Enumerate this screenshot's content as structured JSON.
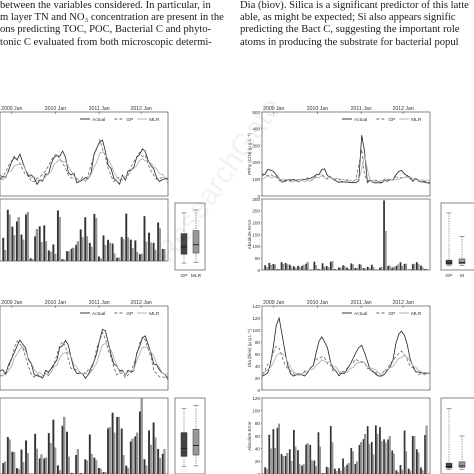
{
  "text_left": {
    "lines": [
      "between the variables considered. In particular, in",
      "m layer TN and NO₃ concentration are present in the",
      "ons predicting TOC, POC, Bacterial C and phyto-",
      "tonic C evaluated from both microscopic determi-"
    ]
  },
  "text_right": {
    "lines": [
      "Dia (biov). Silica is a significant predictor of this latte",
      "able, as might be expected; Si also appears signific",
      "predicting the Bact C, suggesting the important role",
      "atoms in producing the substrate for bacterial popul"
    ]
  },
  "year_ticks": [
    "2009 Jan",
    "2010 Jan",
    "2011 Jan",
    "2012 Jan"
  ],
  "legend": {
    "actual": "Actual",
    "gp": "GP",
    "mlr": "MLR"
  },
  "box_labels": [
    "GP",
    "MLR"
  ],
  "box_labels_right": [
    "GP",
    "M"
  ],
  "panels": {
    "tr_line": {
      "ylabel": "PPhy (C/N) (μ g L⁻¹)",
      "yticks": [
        "500",
        "400",
        "300",
        "200",
        "100",
        "0"
      ]
    },
    "tr_bar": {
      "ylabel": "Absolute Error",
      "yticks": [
        "300",
        "250",
        "200",
        "150",
        "100",
        "50",
        "0"
      ]
    },
    "br_line": {
      "ylabel": "Dia (biov) (μ g L⁻¹)",
      "yticks": [
        "140",
        "120",
        "100",
        "80",
        "60",
        "40",
        "20",
        "0"
      ]
    },
    "br_bar": {
      "ylabel": "Absolute Error",
      "yticks": [
        "120",
        "100",
        "80",
        "60",
        "40",
        "20",
        "0"
      ]
    }
  },
  "watermark": "ResearchGate"
}
